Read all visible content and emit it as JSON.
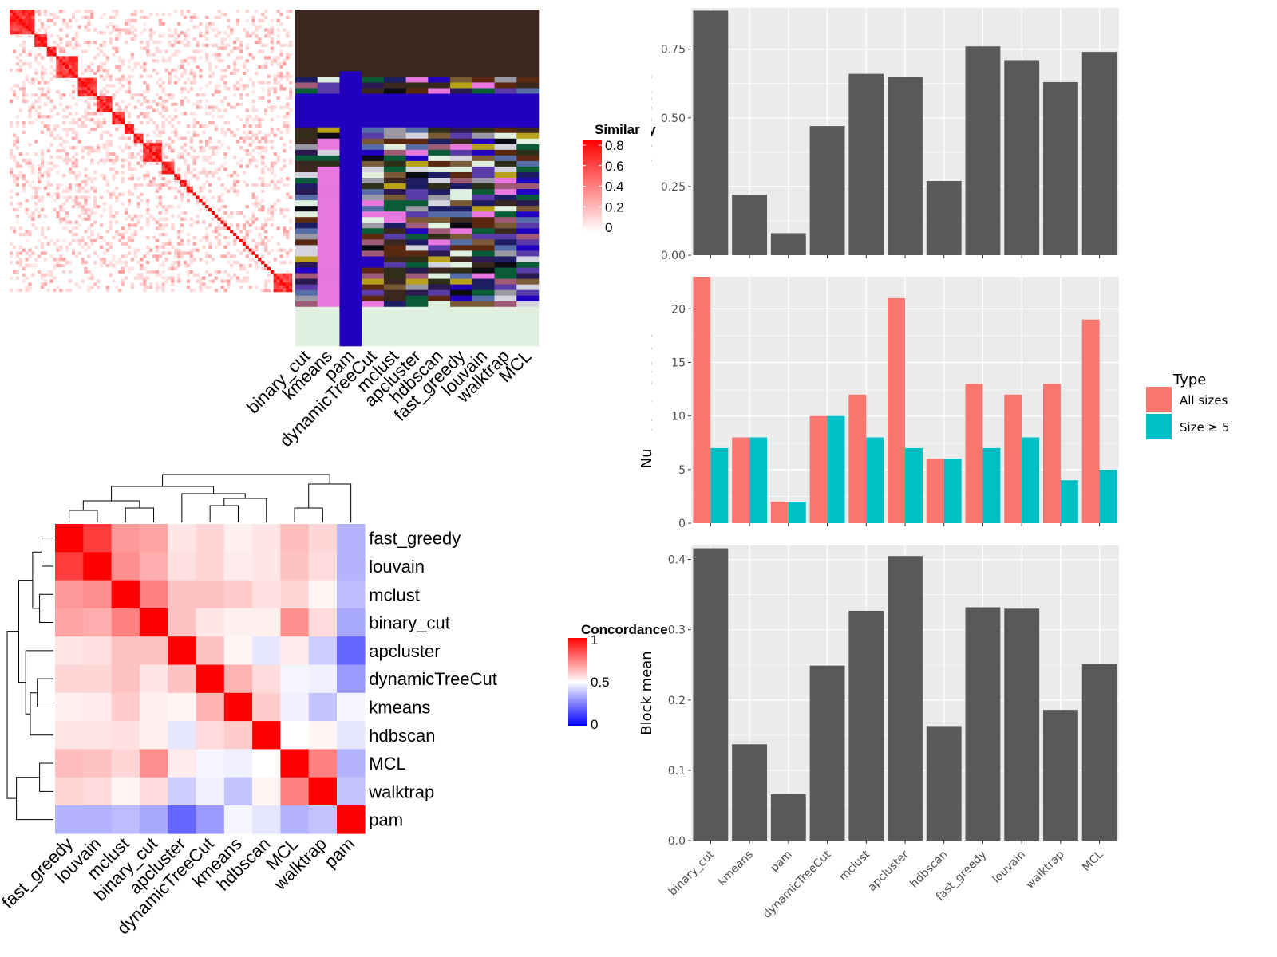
{
  "colors": {
    "panel_bg": "#ebebeb",
    "grid": "#ffffff",
    "bar": "#595959",
    "all_sizes": "#f8766d",
    "size_ge5": "#00bfc4",
    "heat_red": "#ff0000",
    "heat_blue": "#0000ff"
  },
  "similarity_heatmap": {
    "legend_title": "Similarity",
    "legend_ticks": [
      "0.8",
      "0.6",
      "0.4",
      "0.2",
      "0"
    ],
    "column_labels": [
      "binary_cut",
      "kmeans",
      "pam",
      "dynamicTreeCut",
      "mclust",
      "apcluster",
      "hdbscan",
      "fast_greedy",
      "louvain",
      "walktrap",
      "MCL"
    ],
    "block_sizes": [
      8,
      4,
      3,
      7,
      6,
      5,
      4,
      3,
      3,
      6,
      4,
      2,
      2,
      2,
      1,
      1,
      1,
      1,
      1,
      1,
      1,
      1,
      1,
      1,
      1,
      1,
      1,
      1,
      1,
      1,
      1,
      1,
      1,
      1,
      1,
      1,
      1,
      1,
      1,
      1,
      6
    ]
  },
  "concordance_heatmap": {
    "legend_title": "Concordance",
    "legend_ticks": [
      "1",
      "0.5",
      "0"
    ],
    "methods": [
      "fast_greedy",
      "louvain",
      "mclust",
      "binary_cut",
      "apcluster",
      "dynamicTreeCut",
      "kmeans",
      "hdbscan",
      "MCL",
      "walktrap",
      "pam"
    ],
    "matrix": [
      [
        1.0,
        0.88,
        0.7,
        0.68,
        0.55,
        0.58,
        0.53,
        0.55,
        0.63,
        0.58,
        0.35
      ],
      [
        0.88,
        1.0,
        0.72,
        0.66,
        0.56,
        0.58,
        0.54,
        0.55,
        0.62,
        0.57,
        0.35
      ],
      [
        0.7,
        0.72,
        1.0,
        0.75,
        0.62,
        0.62,
        0.6,
        0.56,
        0.58,
        0.52,
        0.37
      ],
      [
        0.68,
        0.66,
        0.75,
        1.0,
        0.62,
        0.55,
        0.53,
        0.53,
        0.72,
        0.57,
        0.33
      ],
      [
        0.55,
        0.56,
        0.62,
        0.62,
        1.0,
        0.62,
        0.52,
        0.45,
        0.54,
        0.4,
        0.2
      ],
      [
        0.58,
        0.58,
        0.62,
        0.55,
        0.62,
        1.0,
        0.65,
        0.57,
        0.48,
        0.47,
        0.3
      ],
      [
        0.53,
        0.54,
        0.6,
        0.53,
        0.52,
        0.65,
        1.0,
        0.6,
        0.47,
        0.38,
        0.48
      ],
      [
        0.55,
        0.55,
        0.56,
        0.53,
        0.45,
        0.57,
        0.6,
        1.0,
        0.5,
        0.52,
        0.45
      ],
      [
        0.63,
        0.62,
        0.58,
        0.72,
        0.54,
        0.48,
        0.47,
        0.5,
        1.0,
        0.75,
        0.35
      ],
      [
        0.58,
        0.57,
        0.52,
        0.57,
        0.4,
        0.47,
        0.38,
        0.52,
        0.75,
        1.0,
        0.38
      ],
      [
        0.35,
        0.35,
        0.37,
        0.33,
        0.2,
        0.3,
        0.48,
        0.45,
        0.35,
        0.38,
        1.0
      ]
    ]
  },
  "chart_data": [
    {
      "type": "bar",
      "categories": [
        "binary_cut",
        "kmeans",
        "pam",
        "dynamicTreeCut",
        "mclust",
        "apcluster",
        "hdbscan",
        "fast_greedy",
        "louvain",
        "walktrap",
        "MCL"
      ],
      "values": [
        0.89,
        0.22,
        0.08,
        0.47,
        0.66,
        0.65,
        0.27,
        0.76,
        0.71,
        0.63,
        0.74
      ],
      "ylabel": "Difference score",
      "ylim": [
        0,
        0.9
      ],
      "yticks": [
        "0.00",
        "0.25",
        "0.50",
        "0.75"
      ],
      "grid": true
    },
    {
      "type": "bar",
      "categories": [
        "binary_cut",
        "kmeans",
        "pam",
        "dynamicTreeCut",
        "mclust",
        "apcluster",
        "hdbscan",
        "fast_greedy",
        "louvain",
        "walktrap",
        "MCL"
      ],
      "series": [
        {
          "name": "All sizes",
          "values": [
            23,
            8,
            2,
            10,
            12,
            21,
            6,
            13,
            12,
            13,
            19
          ]
        },
        {
          "name": "Size ≥ 5",
          "values": [
            7,
            8,
            2,
            10,
            8,
            7,
            6,
            7,
            8,
            4,
            5
          ]
        }
      ],
      "ylabel": "Number of clusters",
      "ylim": [
        0,
        23
      ],
      "yticks": [
        "0",
        "5",
        "10",
        "15",
        "20"
      ],
      "legend_title": "Type",
      "legend": "right",
      "grid": true
    },
    {
      "type": "bar",
      "categories": [
        "binary_cut",
        "kmeans",
        "pam",
        "dynamicTreeCut",
        "mclust",
        "apcluster",
        "hdbscan",
        "fast_greedy",
        "louvain",
        "walktrap",
        "MCL"
      ],
      "values": [
        0.416,
        0.137,
        0.066,
        0.249,
        0.327,
        0.405,
        0.163,
        0.332,
        0.33,
        0.186,
        0.251
      ],
      "ylabel": "Block mean",
      "ylim": [
        0,
        0.42
      ],
      "yticks": [
        "0.0",
        "0.1",
        "0.2",
        "0.3",
        "0.4"
      ],
      "grid": true
    }
  ]
}
